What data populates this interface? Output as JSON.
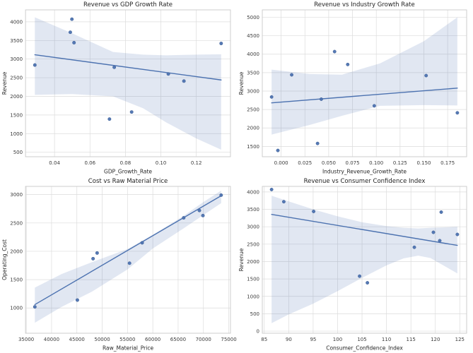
{
  "figure": {
    "background": "#ffffff",
    "layout": "2x2-grid"
  },
  "style": {
    "point_color": "#4c72b0",
    "point_edge_color": "#3d5e94",
    "line_color": "#4c72b0",
    "band_color": "#4c72b0",
    "band_opacity": 0.17,
    "grid_color": "#dcdcdc",
    "spine_color": "#c9c9c9",
    "title_color": "#1f1f1f",
    "tick_color": "#3c3c3c"
  },
  "chart_data": [
    {
      "type": "scatter",
      "title": "Revenue vs GDP Growth Rate",
      "xlabel": "GDP_Growth_Rate",
      "ylabel": "Revenue",
      "grid": true,
      "legend": null,
      "xlim": [
        0.02364,
        0.13926
      ],
      "ylim": [
        380,
        4320
      ],
      "xticks": [
        0.04,
        0.06,
        0.08,
        0.1,
        0.12
      ],
      "xtick_labels": [
        "0.04",
        "0.06",
        "0.08",
        "0.10",
        "0.12"
      ],
      "yticks": [
        500,
        1000,
        1500,
        2000,
        2500,
        3000,
        3500,
        4000
      ],
      "points": [
        [
          0.0289,
          2840
        ],
        [
          0.0489,
          3720
        ],
        [
          0.0498,
          4070
        ],
        [
          0.051,
          3440
        ],
        [
          0.071,
          1390
        ],
        [
          0.0737,
          2780
        ],
        [
          0.0835,
          1580
        ],
        [
          0.1042,
          2600
        ],
        [
          0.113,
          2410
        ],
        [
          0.134,
          3420
        ]
      ],
      "regression_line": {
        "x1": 0.0289,
        "y1": 3115,
        "x2": 0.134,
        "y2": 2440
      },
      "confidence_band": [
        [
          0.0289,
          2040,
          4120
        ],
        [
          0.05,
          2060,
          3690
        ],
        [
          0.073,
          2000,
          3190
        ],
        [
          0.09,
          1680,
          3120
        ],
        [
          0.103,
          1300,
          3100
        ],
        [
          0.12,
          870,
          3120
        ],
        [
          0.134,
          570,
          3130
        ]
      ]
    },
    {
      "type": "scatter",
      "title": "Revenue vs Industry Growth Rate",
      "xlabel": "Industry_Revenue_Growth_Rate",
      "ylabel": "Revenue",
      "grid": true,
      "legend": null,
      "xlim": [
        -0.01976,
        0.19496
      ],
      "ylim": [
        1220,
        5200
      ],
      "xticks": [
        0.0,
        0.025,
        0.05,
        0.075,
        0.1,
        0.125,
        0.15,
        0.175
      ],
      "xtick_labels": [
        "0.000",
        "0.025",
        "0.050",
        "0.075",
        "0.100",
        "0.125",
        "0.150",
        "0.175"
      ],
      "yticks": [
        1500,
        2000,
        2500,
        3000,
        3500,
        4000,
        4500,
        5000
      ],
      "points": [
        [
          -0.01,
          2840
        ],
        [
          -0.0034,
          1390
        ],
        [
          0.0111,
          3440
        ],
        [
          0.0383,
          1580
        ],
        [
          0.0422,
          2780
        ],
        [
          0.0562,
          4070
        ],
        [
          0.07,
          3720
        ],
        [
          0.0979,
          2600
        ],
        [
          0.1524,
          3420
        ],
        [
          0.1852,
          2410
        ]
      ],
      "regression_line": {
        "x1": -0.01,
        "y1": 2680,
        "x2": 0.1852,
        "y2": 3080
      },
      "confidence_band": [
        [
          -0.01,
          1820,
          3580
        ],
        [
          0.03,
          2080,
          3460
        ],
        [
          0.064,
          2330,
          3445
        ],
        [
          0.104,
          2600,
          3750
        ],
        [
          0.15,
          2620,
          4350
        ],
        [
          0.1852,
          2610,
          5000
        ]
      ]
    },
    {
      "type": "scatter",
      "title": "Cost vs Raw Material Price",
      "xlabel": "Raw_Material_Price",
      "ylabel": "Operating_Cost",
      "grid": true,
      "legend": null,
      "xlim": [
        34860,
        75340
      ],
      "ylim": [
        555,
        3145
      ],
      "xticks": [
        35000,
        40000,
        45000,
        50000,
        55000,
        60000,
        65000,
        70000,
        75000
      ],
      "xtick_labels": [
        "35000",
        "40000",
        "45000",
        "50000",
        "55000",
        "60000",
        "65000",
        "70000",
        "75000"
      ],
      "yticks": [
        1000,
        1500,
        2000,
        2500,
        3000
      ],
      "points": [
        [
          36700,
          1020
        ],
        [
          45100,
          1140
        ],
        [
          48200,
          1870
        ],
        [
          49000,
          1970
        ],
        [
          55400,
          1790
        ],
        [
          57900,
          2150
        ],
        [
          66100,
          2590
        ],
        [
          69200,
          2720
        ],
        [
          69900,
          2630
        ],
        [
          73500,
          2990
        ]
      ],
      "regression_line": {
        "x1": 36700,
        "y1": 1060,
        "x2": 73500,
        "y2": 2980
      },
      "confidence_band": [
        [
          36700,
          740,
          1360
        ],
        [
          42000,
          1020,
          1600
        ],
        [
          48000,
          1290,
          1810
        ],
        [
          55000,
          1680,
          2040
        ],
        [
          60000,
          2050,
          2290
        ],
        [
          66000,
          2400,
          2620
        ],
        [
          70000,
          2640,
          2870
        ],
        [
          73500,
          2850,
          3070
        ]
      ]
    },
    {
      "type": "scatter",
      "title": "Revenue vs Consumer Confidence Index",
      "xlabel": "Consumer_Confidence_Index",
      "ylabel": "Revenue",
      "grid": true,
      "legend": null,
      "xlim": [
        84.6,
        126.4
      ],
      "ylim": [
        -60,
        4160
      ],
      "xticks": [
        85,
        90,
        95,
        100,
        105,
        110,
        115,
        120,
        125
      ],
      "xtick_labels": [
        "85",
        "90",
        "95",
        "100",
        "105",
        "110",
        "115",
        "120",
        "125"
      ],
      "yticks": [
        0,
        500,
        1000,
        1500,
        2000,
        2500,
        3000,
        3500,
        4000
      ],
      "points": [
        [
          86.5,
          4070
        ],
        [
          89.0,
          3720
        ],
        [
          95.1,
          3440
        ],
        [
          104.5,
          1580
        ],
        [
          106.1,
          1390
        ],
        [
          115.7,
          2410
        ],
        [
          119.6,
          2840
        ],
        [
          120.9,
          2600
        ],
        [
          121.2,
          3420
        ],
        [
          124.5,
          2780
        ]
      ],
      "regression_line": {
        "x1": 86.5,
        "y1": 3355,
        "x2": 124.5,
        "y2": 2465
      },
      "confidence_band": [
        [
          86.5,
          230,
          3890
        ],
        [
          90,
          480,
          3730
        ],
        [
          95,
          790,
          3500
        ],
        [
          100,
          1150,
          3300
        ],
        [
          105,
          1530,
          3130
        ],
        [
          110,
          1890,
          3020
        ],
        [
          113.5,
          2090,
          2970
        ],
        [
          116.5,
          2170,
          2950
        ],
        [
          119,
          2100,
          2970
        ],
        [
          121.5,
          1900,
          2980
        ],
        [
          124.5,
          1660,
          3000
        ]
      ]
    }
  ]
}
